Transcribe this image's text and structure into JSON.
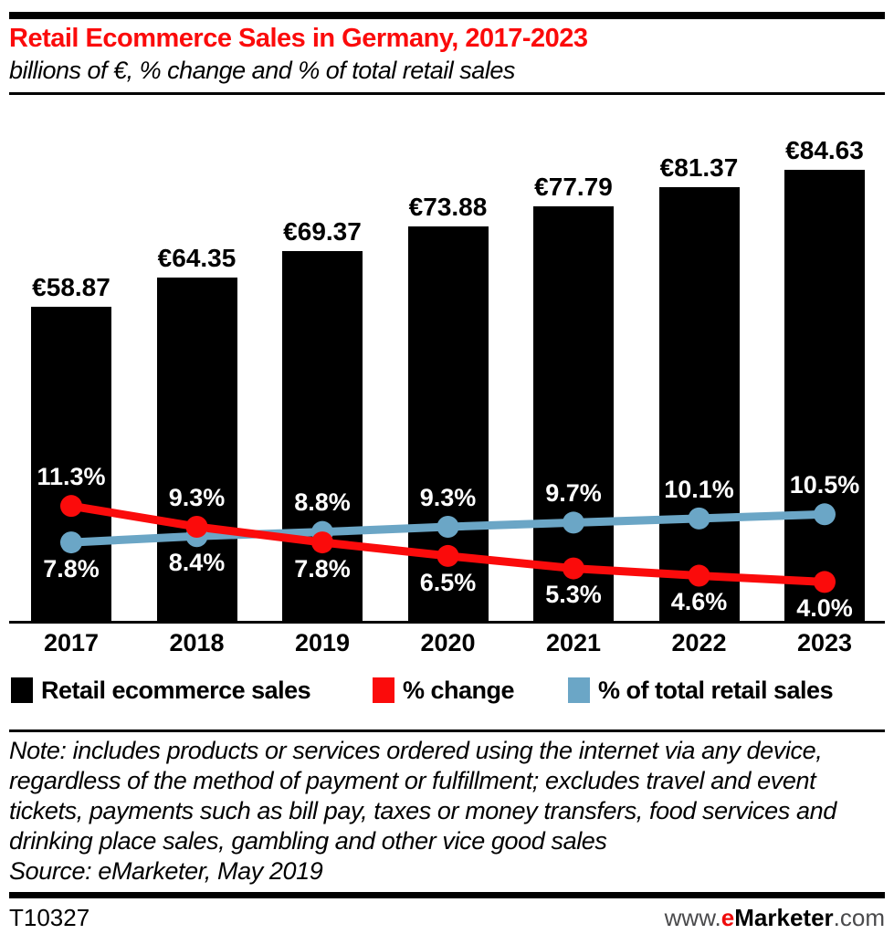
{
  "header": {
    "title": "Retail Ecommerce Sales in Germany, 2017-2023",
    "subtitle": "billions of €, % change and % of total retail sales"
  },
  "chart_data": {
    "type": "bar+line combo",
    "categories": [
      "2017",
      "2018",
      "2019",
      "2020",
      "2021",
      "2022",
      "2023"
    ],
    "series": [
      {
        "name": "Retail ecommerce sales",
        "type": "bar",
        "unit": "billions of €",
        "color": "#000000",
        "values": [
          58.87,
          64.35,
          69.37,
          73.88,
          77.79,
          81.37,
          84.63
        ],
        "labels": [
          "€58.87",
          "€64.35",
          "€69.37",
          "€73.88",
          "€77.79",
          "€81.37",
          "€84.63"
        ]
      },
      {
        "name": "% change",
        "type": "line",
        "color": "#fb0b0b",
        "values": [
          11.3,
          9.3,
          7.8,
          6.5,
          5.3,
          4.6,
          4.0
        ],
        "labels": [
          "11.3%",
          "9.3%",
          "7.8%",
          "6.5%",
          "5.3%",
          "4.6%",
          "4.0%"
        ]
      },
      {
        "name": "% of total retail sales",
        "type": "line",
        "color": "#6ba6c6",
        "values": [
          7.8,
          8.4,
          8.8,
          9.3,
          9.7,
          10.1,
          10.5
        ],
        "labels": [
          "7.8%",
          "8.4%",
          "8.8%",
          "9.3%",
          "9.7%",
          "10.1%",
          "10.5%"
        ]
      }
    ],
    "ylim_bars": [
      0,
      98
    ],
    "ylim_pct": [
      0,
      50
    ],
    "grid": false,
    "legend_position": "bottom",
    "title": "Retail Ecommerce Sales in Germany, 2017-2023",
    "subtitle": "billions of €, % change and % of total retail sales"
  },
  "legend": {
    "items": [
      {
        "label": "Retail ecommerce sales",
        "color": "#000000"
      },
      {
        "label": "% change",
        "color": "#fb0b0b"
      },
      {
        "label": "% of total retail sales",
        "color": "#6ba6c6"
      }
    ]
  },
  "note": {
    "text": "Note: includes products or services ordered using the internet via any device, regardless of the method of payment or fulfillment; excludes travel and event tickets, payments such as bill pay, taxes or money transfers, food services and drinking place sales, gambling and other vice good sales",
    "source": "Source: eMarketer, May 2019"
  },
  "footer": {
    "chart_id": "T10327",
    "site_prefix": "www.",
    "brand_e": "e",
    "brand_rest": "Marketer",
    "site_suffix": ".com"
  }
}
